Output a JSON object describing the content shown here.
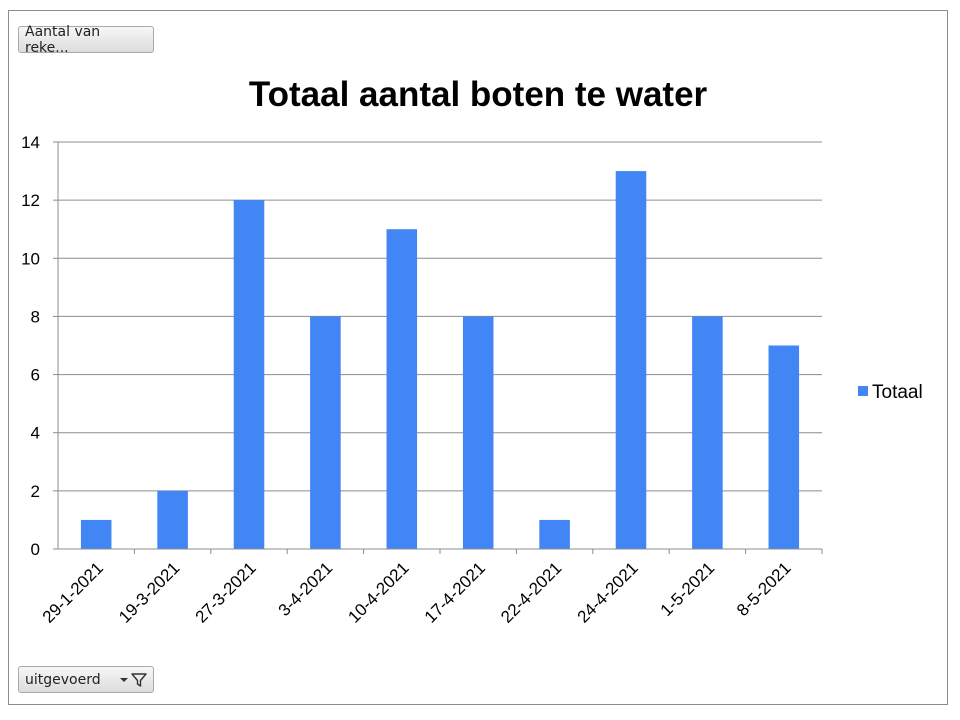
{
  "window": {
    "value_field_button": "Aantal van reke...",
    "axis_field_button": "uitgevoerd"
  },
  "icons": {
    "filter": "filter-funnel-icon",
    "dropdown": "chevron-down-icon"
  },
  "colors": {
    "bar": "#4285f4",
    "grid": "#8c8c8c",
    "axis": "#8c8c8c"
  },
  "chart_data": {
    "type": "bar",
    "title": "Totaal aantal boten te water",
    "xlabel": "",
    "ylabel": "",
    "categories": [
      "29-1-2021",
      "19-3-2021",
      "27-3-2021",
      "3-4-2021",
      "10-4-2021",
      "17-4-2021",
      "22-4-2021",
      "24-4-2021",
      "1-5-2021",
      "8-5-2021"
    ],
    "series": [
      {
        "name": "Totaal",
        "values": [
          1,
          2,
          12,
          8,
          11,
          8,
          1,
          13,
          8,
          7
        ]
      }
    ],
    "ylim": [
      0,
      14
    ],
    "yticks": [
      0,
      2,
      4,
      6,
      8,
      10,
      12,
      14
    ],
    "grid": true,
    "legend": "right"
  }
}
